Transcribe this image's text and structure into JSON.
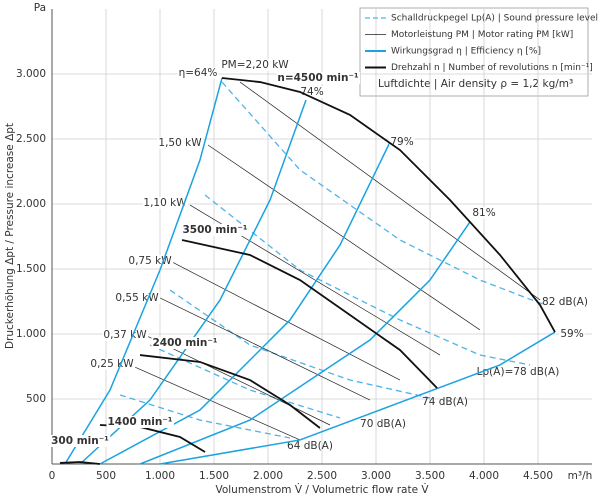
{
  "chart_data": {
    "type": "line",
    "y_unit": "Pa",
    "x_unit": "m³/h",
    "x_label": "Volumenstrom V̇ / Volumetric flow rate V̇",
    "y_label": "Druckerhöhung Δpt / Pressure increase Δpt",
    "xlim": [
      0,
      5000
    ],
    "ylim": [
      0,
      3500
    ],
    "xticks": [
      0,
      500,
      {
        "value": 1000,
        "label": "1.000"
      },
      {
        "value": 1500,
        "label": "1.500"
      },
      {
        "value": 2000,
        "label": "2.000"
      },
      {
        "value": 2500,
        "label": "2.500"
      },
      {
        "value": 3000,
        "label": "3.000"
      },
      {
        "value": 3500,
        "label": "3.500"
      },
      {
        "value": 4000,
        "label": "4.000"
      },
      {
        "value": 4500,
        "label": "4.500"
      }
    ],
    "yticks": [
      500,
      {
        "value": 1000,
        "label": "1.000"
      },
      {
        "value": 1500,
        "label": "1.500"
      },
      {
        "value": 2000,
        "label": "2.000"
      },
      {
        "value": 2500,
        "label": "2.500"
      },
      {
        "value": 3000,
        "label": "3.000"
      }
    ],
    "grid": true,
    "legend_position": "upper right",
    "legend_note": "Luftdichte | Air density ρ = 1,2 kg/m³",
    "groups": [
      {
        "legend": "Schalldruckpegel Lp(A) | Sound pressure level Lp(A) [dB(A)]",
        "color": "#4fb3e8",
        "dashed": true,
        "bold": false,
        "curves": [
          {
            "name": "64 dB(A)",
            "x": [
              630,
              1370,
              2204
            ],
            "values": [
              531,
              338,
              200
            ]
          },
          {
            "name": "70 dB(A)",
            "x": [
              907,
              1833,
              2667
            ],
            "values": [
              915,
              569,
              354
            ]
          },
          {
            "name": "74 dB(A)",
            "x": [
              1093,
              1833,
              2759,
              3500
            ],
            "values": [
              1338,
              915,
              646,
              508
            ]
          },
          {
            "name": "Lp(A)=78 dB(A)",
            "x": [
              1417,
              2296,
              3222,
              3963,
              4426
            ],
            "values": [
              2069,
              1492,
              1108,
              838,
              762
            ]
          },
          {
            "name": "82 dB(A)",
            "x": [
              1574,
              2296,
              3222,
              3963,
              4565
            ],
            "values": [
              2938,
              2262,
              1723,
              1415,
              1223
            ]
          }
        ]
      },
      {
        "legend": "Motorleistung PM | Motor rating PM [kW]",
        "color": "#222222",
        "dashed": false,
        "bold": false,
        "curves": [
          {
            "name": "0,25 kW",
            "x": [
              722,
              2296
            ],
            "values": [
              762,
              185
            ]
          },
          {
            "name": "0,37 kW",
            "x": [
              861,
              2574
            ],
            "values": [
              992,
              300
            ]
          },
          {
            "name": "0,55 kW",
            "x": [
              1000,
              2944
            ],
            "values": [
              1277,
              492
            ]
          },
          {
            "name": "0,75 kW",
            "x": [
              1111,
              3222
            ],
            "values": [
              1554,
              646
            ]
          },
          {
            "name": "1,10 kW",
            "x": [
              1278,
              3593
            ],
            "values": [
              1992,
              838
            ]
          },
          {
            "name": "1,50 kW",
            "x": [
              1444,
              3963
            ],
            "values": [
              2454,
              1031
            ]
          },
          {
            "name": "PM=2,20 kW",
            "x": [
              1741,
              4519
            ],
            "values": [
              2938,
              1262
            ]
          }
        ]
      },
      {
        "legend": "Wirkungsgrad η | Efficiency η [%]",
        "color": "#1aa3e0",
        "dashed": false,
        "bold": true,
        "curves": [
          {
            "name": "η=64%",
            "x": [
              120,
              537,
              1000,
              1370,
              1574
            ],
            "values": [
              0,
              569,
              1492,
              2338,
              2969
            ]
          },
          {
            "name": "74%",
            "x": [
              259,
              907,
              1556,
              2019,
              2352
            ],
            "values": [
              0,
              492,
              1262,
              2031,
              2800
            ]
          },
          {
            "name": "79%",
            "x": [
              444,
              1370,
              2204,
              2667,
              3130
            ],
            "values": [
              0,
              415,
              1108,
              1685,
              2477
            ]
          },
          {
            "name": "81%",
            "x": [
              815,
              1833,
              2944,
              3500,
              3870
            ],
            "values": [
              0,
              338,
              954,
              1415,
              1862
            ]
          },
          {
            "name": "59%",
            "x": [
              1000,
              2296,
              3407,
              4148,
              4657
            ],
            "values": [
              0,
              185,
              531,
              762,
              1015
            ]
          }
        ]
      },
      {
        "legend": "Drehzahl n | Number of revolutions n [min⁻¹]",
        "color": "#111111",
        "dashed": false,
        "bold": true,
        "curves": [
          {
            "name": "300 min⁻¹",
            "x": [
              74,
              259,
              444
            ],
            "values": [
              8,
              15,
              0
            ]
          },
          {
            "name": "1400 min⁻¹",
            "x": [
              444,
              815,
              1185,
              1417
            ],
            "values": [
              300,
              285,
              208,
              92
            ]
          },
          {
            "name": "2400 min⁻¹",
            "x": [
              815,
              1370,
              1833,
              2204,
              2481
            ],
            "values": [
              838,
              785,
              646,
              454,
              277
            ]
          },
          {
            "name": "3500 min⁻¹",
            "x": [
              1204,
              1833,
              2296,
              2759,
              3222,
              3565
            ],
            "values": [
              1723,
              1608,
              1415,
              1146,
              877,
              585
            ]
          },
          {
            "name": "n=4500 min⁻¹",
            "x": [
              1574,
              1926,
              2296,
              2759,
              3222,
              3685,
              4148,
              4519,
              4657
            ],
            "values": [
              2969,
              2938,
              2862,
              2685,
              2415,
              2031,
              1608,
              1223,
              1015
            ]
          }
        ]
      }
    ]
  }
}
